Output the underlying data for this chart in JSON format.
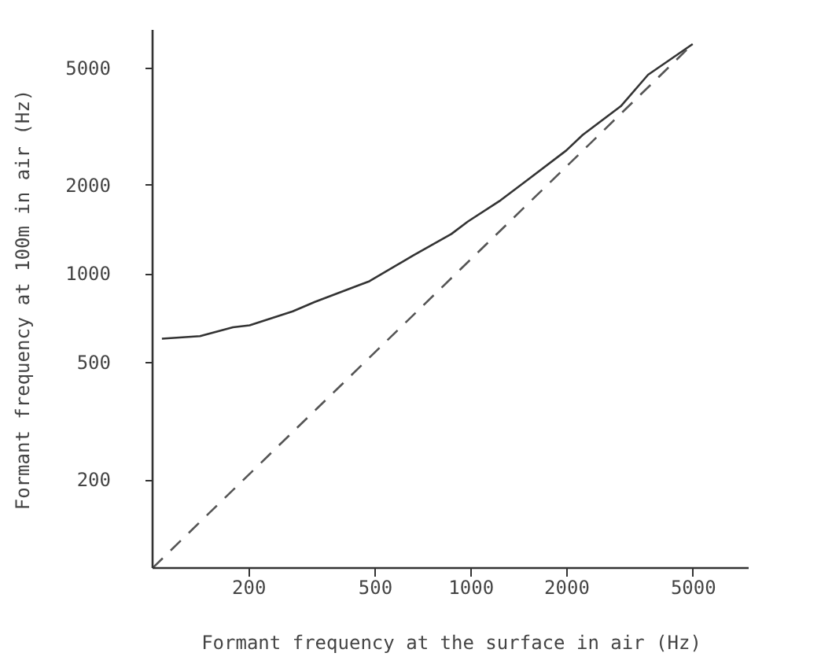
{
  "chart_data": {
    "type": "line",
    "xlabel": "Formant frequency at the surface in air (Hz)",
    "ylabel": "Formant frequency at 100m in air (Hz)",
    "log": "xy",
    "xlim": [
      100,
      7500
    ],
    "ylim": [
      100,
      6700
    ],
    "xticks": [
      200,
      500,
      1000,
      2000,
      5000
    ],
    "yticks": [
      200,
      500,
      1000,
      2000,
      5000
    ],
    "grid": false,
    "marker": "none",
    "series": [
      {
        "color": "#333333",
        "line_style": "solid",
        "x": [
          107,
          141,
          179,
          202,
          276,
          324,
          444,
          481,
          661,
          871,
          982,
          1244,
          1517,
          2000,
          2254,
          2970,
          3620,
          5000
        ],
        "values": [
          600,
          612,
          656,
          666,
          743,
          800,
          910,
          940,
          1150,
          1360,
          1500,
          1770,
          2080,
          2610,
          2950,
          3690,
          4720,
          6000
        ]
      },
      {
        "color": "#555555",
        "line_style": "dashed",
        "x": [
          100,
          5000
        ],
        "values": [
          100,
          6000
        ]
      }
    ]
  }
}
